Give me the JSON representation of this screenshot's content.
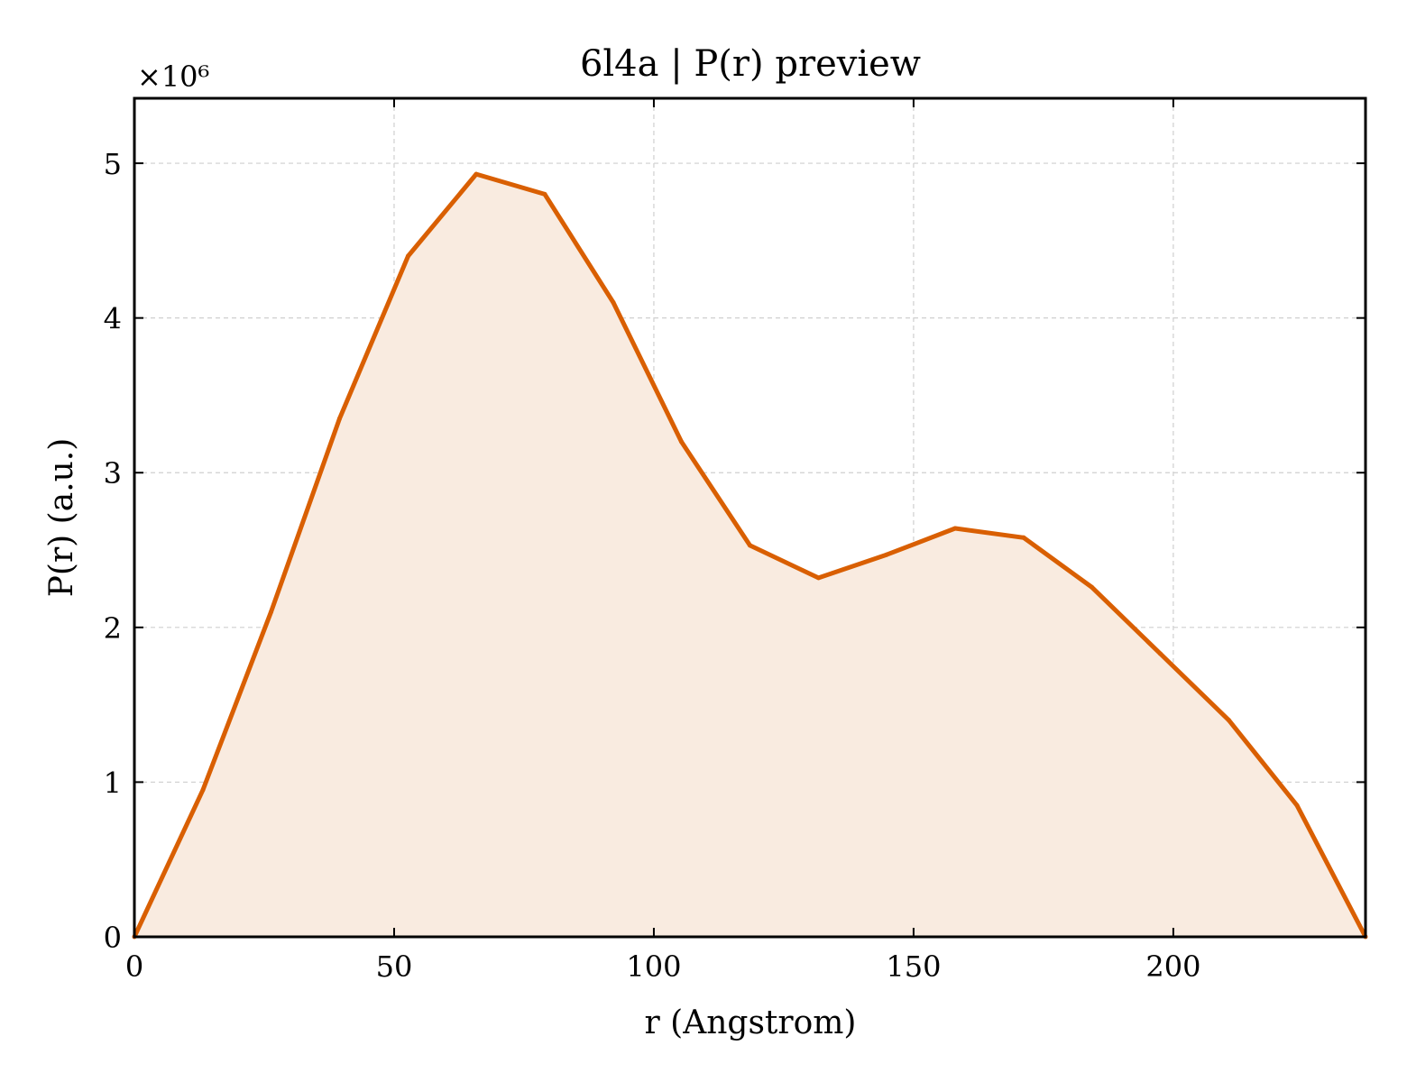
{
  "chart_data": {
    "type": "area",
    "title": "6l4a | P(r) preview",
    "xlabel": "r (Angstrom)",
    "ylabel": "P(r) (a.u.)",
    "y_offset_label": "×10⁶",
    "xlim": [
      0,
      237
    ],
    "ylim": [
      0,
      5.42
    ],
    "x_ticks": [
      0,
      50,
      100,
      150,
      200
    ],
    "y_ticks": [
      0,
      1,
      2,
      3,
      4,
      5
    ],
    "grid": true,
    "series": [
      {
        "x": [
          0,
          13.2,
          26.3,
          39.5,
          52.7,
          65.8,
          79.0,
          92.2,
          105.3,
          118.5,
          131.7,
          144.8,
          158.0,
          171.2,
          184.3,
          197.5,
          210.7,
          223.8,
          237.0
        ],
        "values": [
          0.0,
          0.95,
          2.1,
          3.35,
          4.4,
          4.93,
          4.8,
          4.1,
          3.2,
          2.53,
          2.32,
          2.47,
          2.64,
          2.58,
          2.26,
          1.83,
          1.4,
          0.85,
          0.0
        ],
        "color": "#d95f02",
        "fill_color": "#f9ebe0"
      }
    ]
  }
}
